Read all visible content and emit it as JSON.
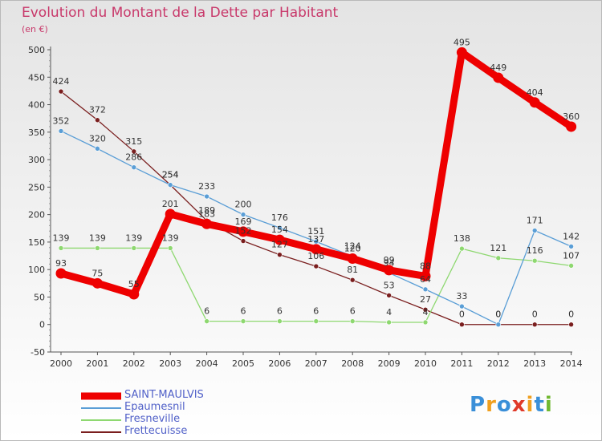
{
  "title": "Evolution du Montant de la Dette par Habitant",
  "subtitle": "(en €)",
  "brand": {
    "letters": [
      "P",
      "r",
      "o",
      "x",
      "i",
      "t",
      "i"
    ],
    "colors": [
      "#3a8fd8",
      "#f0a020",
      "#3a8fd8",
      "#e03a2a",
      "#f0a020",
      "#3a8fd8",
      "#70b830"
    ]
  },
  "chart_data": {
    "type": "line",
    "x": [
      "2000",
      "2001",
      "2002",
      "2003",
      "2004",
      "2005",
      "2006",
      "2007",
      "2008",
      "2009",
      "2010",
      "2011",
      "2012",
      "2013",
      "2014"
    ],
    "ylim": [
      -50,
      500
    ],
    "yticks": [
      "-50",
      "0",
      "50",
      "100",
      "150",
      "200",
      "250",
      "300",
      "350",
      "400",
      "450",
      "500"
    ],
    "grid": false,
    "legend_position": "bottom-left",
    "series": [
      {
        "name": "Frettecuisse",
        "color": "#7a1e1e",
        "values": [
          424,
          372,
          315,
          254,
          189,
          152,
          127,
          106,
          81,
          53,
          27,
          0,
          0,
          0,
          0
        ]
      },
      {
        "name": "Fresneville",
        "color": "#8ed870",
        "values": [
          139,
          139,
          139,
          139,
          6,
          6,
          6,
          6,
          6,
          4,
          4,
          138,
          121,
          116,
          107
        ]
      },
      {
        "name": "Epaumesnil",
        "color": "#5a9ed6",
        "values": [
          352,
          320,
          286,
          254,
          233,
          200,
          176,
          151,
          124,
          94,
          64,
          33,
          0,
          171,
          142
        ]
      },
      {
        "name": "SAINT-MAULVIS",
        "color": "#ee0000",
        "values": [
          93,
          75,
          55,
          201,
          183,
          169,
          154,
          137,
          120,
          99,
          88,
          495,
          449,
          404,
          360
        ]
      }
    ],
    "legend_order": [
      "SAINT-MAULVIS",
      "Epaumesnil",
      "Fresneville",
      "Frettecuisse"
    ]
  }
}
